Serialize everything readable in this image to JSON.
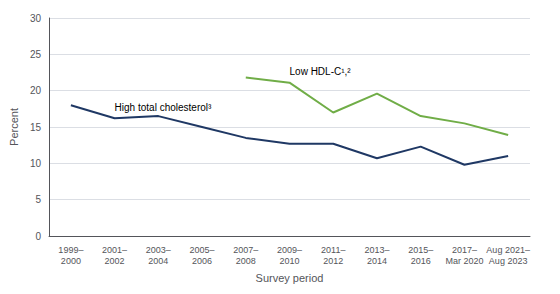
{
  "chart_data": {
    "type": "line",
    "xlabel": "Survey period",
    "ylabel": "Percent",
    "categories": [
      "1999–\n2000",
      "2001–\n2002",
      "2003–\n2004",
      "2005–\n2006",
      "2007–\n2008",
      "2009–\n2010",
      "2011–\n2012",
      "2013–\n2014",
      "2015–\n2016",
      "2017–\nMar 2020",
      "Aug 2021–\nAug 2023"
    ],
    "series": [
      {
        "name": "High total cholesterol³",
        "color": "#1f3864",
        "values": [
          18.0,
          16.2,
          16.5,
          15.0,
          13.5,
          12.7,
          12.7,
          10.7,
          12.3,
          9.8,
          11.0
        ]
      },
      {
        "name": "Low HDL-C¹,²",
        "color": "#70ad47",
        "values": [
          null,
          null,
          null,
          null,
          21.8,
          21.1,
          17.0,
          19.6,
          16.5,
          15.5,
          13.9
        ]
      }
    ],
    "ylim": [
      0,
      30
    ],
    "yticks": [
      0,
      5,
      10,
      15,
      20,
      25,
      30
    ],
    "grid": true
  }
}
